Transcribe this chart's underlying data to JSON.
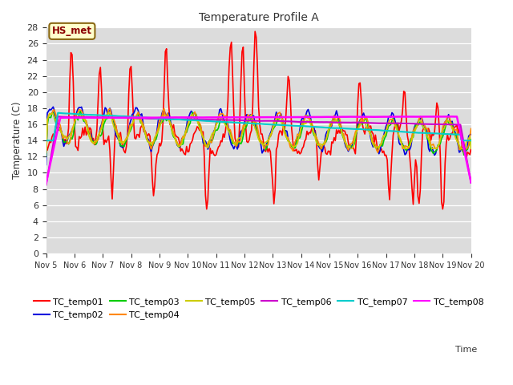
{
  "title": "Temperature Profile A",
  "xlabel": "Time",
  "ylabel": "Temperature (C)",
  "ylim": [
    0,
    28
  ],
  "xlim": [
    0,
    360
  ],
  "background_color": "#dcdcdc",
  "figure_background": "#ffffff",
  "series_names": [
    "TC_temp01",
    "TC_temp02",
    "TC_temp03",
    "TC_temp04",
    "TC_temp05",
    "TC_temp06",
    "TC_temp07",
    "TC_temp08"
  ],
  "series_colors": [
    "#ff0000",
    "#0000dd",
    "#00cc00",
    "#ff8800",
    "#cccc00",
    "#cc00cc",
    "#00cccc",
    "#ff00ff"
  ],
  "series_lw": [
    1.2,
    1.2,
    1.2,
    1.2,
    1.2,
    1.5,
    1.5,
    1.8
  ],
  "xtick_labels": [
    "Nov 5",
    "Nov 6",
    "Nov 7",
    "Nov 8",
    "Nov 9",
    "Nov 10",
    "Nov 11",
    "Nov 12",
    "Nov 13",
    "Nov 14",
    "Nov 15",
    "Nov 16",
    "Nov 17",
    "Nov 18",
    "Nov 19",
    "Nov 20"
  ],
  "xtick_positions": [
    0,
    24,
    48,
    72,
    96,
    120,
    144,
    168,
    192,
    216,
    240,
    264,
    288,
    312,
    336,
    360
  ],
  "annotation": "HS_met",
  "annotation_color": "#8b0000",
  "annotation_bg": "#ffffcc",
  "annotation_border": "#8b6914"
}
